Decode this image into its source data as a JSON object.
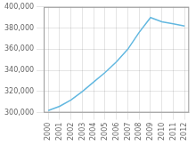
{
  "chart_data": {
    "type": "line",
    "x": [
      2000,
      2001,
      2002,
      2003,
      2004,
      2005,
      2006,
      2007,
      2008,
      2009,
      2010,
      2011,
      2012
    ],
    "values": [
      302000,
      306000,
      312000,
      320000,
      329000,
      338000,
      348000,
      360000,
      376000,
      390000,
      386000,
      384000,
      382000
    ],
    "color": "#63b8e0",
    "xlim": [
      1999.6,
      2012.4
    ],
    "ylim": [
      300000,
      400000
    ],
    "xticks": [
      2000,
      2001,
      2002,
      2003,
      2004,
      2005,
      2006,
      2007,
      2008,
      2009,
      2010,
      2011,
      2012
    ],
    "yticks": [
      {
        "value": 300000,
        "label": "300,000"
      },
      {
        "value": 320000,
        "label": "320,000"
      },
      {
        "value": 340000,
        "label": "340,000"
      },
      {
        "value": 360000,
        "label": "360,000"
      },
      {
        "value": 380000,
        "label": "380,000"
      },
      {
        "value": 400000,
        "label": "400,000"
      }
    ],
    "grid": true
  }
}
